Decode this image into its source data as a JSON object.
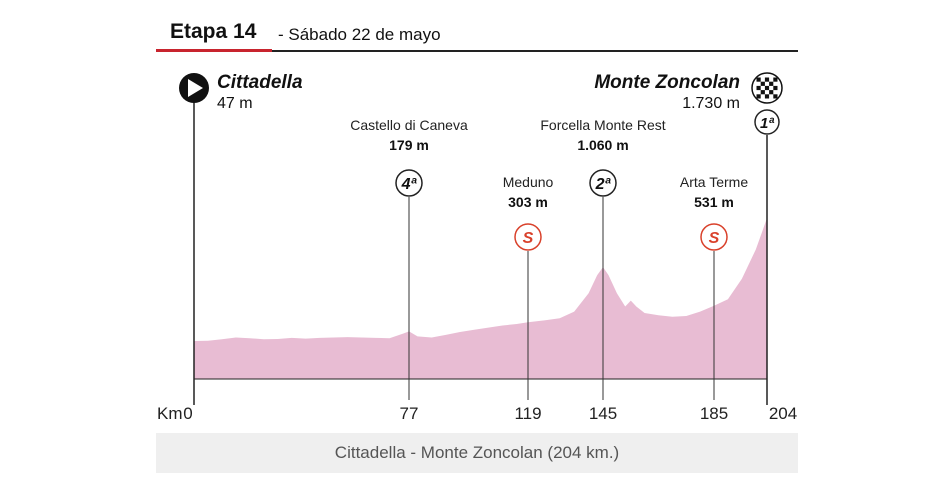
{
  "header": {
    "stage_title": "Etapa 14",
    "stage_date": "- Sábado 22 de mayo"
  },
  "start": {
    "name": "Cittadella",
    "altitude": "47 m",
    "km": 0
  },
  "finish": {
    "name": "Monte Zoncolan",
    "altitude": "1.730 m",
    "km": 204,
    "category": "1ª"
  },
  "waypoints": [
    {
      "name": "Castello di Caneva",
      "altitude": "179 m",
      "km": 77,
      "type": "climb",
      "category": "4ª"
    },
    {
      "name": "Meduno",
      "altitude": "303 m",
      "km": 119,
      "type": "sprint",
      "symbol": "S"
    },
    {
      "name": "Forcella Monte Rest",
      "altitude": "1.060 m",
      "km": 145,
      "type": "climb",
      "category": "2ª"
    },
    {
      "name": "Arta Terme",
      "altitude": "531 m",
      "km": 185,
      "type": "sprint",
      "symbol": "S"
    }
  ],
  "axis": {
    "km_prefix": "Km",
    "ticks": [
      "0",
      "77",
      "119",
      "145",
      "185",
      "204"
    ]
  },
  "profile_color": "#e8bcd3",
  "sprint_color": "#d9412b",
  "profile_points": [
    [
      0,
      47
    ],
    [
      5,
      50
    ],
    [
      10,
      70
    ],
    [
      15,
      95
    ],
    [
      20,
      85
    ],
    [
      25,
      70
    ],
    [
      30,
      75
    ],
    [
      35,
      90
    ],
    [
      40,
      80
    ],
    [
      45,
      90
    ],
    [
      50,
      95
    ],
    [
      55,
      100
    ],
    [
      60,
      95
    ],
    [
      65,
      90
    ],
    [
      70,
      85
    ],
    [
      75,
      150
    ],
    [
      77,
      179
    ],
    [
      80,
      110
    ],
    [
      85,
      95
    ],
    [
      90,
      130
    ],
    [
      95,
      170
    ],
    [
      100,
      200
    ],
    [
      105,
      230
    ],
    [
      110,
      260
    ],
    [
      115,
      280
    ],
    [
      119,
      303
    ],
    [
      125,
      330
    ],
    [
      130,
      360
    ],
    [
      135,
      450
    ],
    [
      140,
      700
    ],
    [
      143,
      950
    ],
    [
      145,
      1060
    ],
    [
      147,
      950
    ],
    [
      150,
      700
    ],
    [
      153,
      520
    ],
    [
      155,
      600
    ],
    [
      157,
      520
    ],
    [
      160,
      430
    ],
    [
      165,
      400
    ],
    [
      170,
      380
    ],
    [
      175,
      390
    ],
    [
      180,
      450
    ],
    [
      185,
      531
    ],
    [
      190,
      620
    ],
    [
      195,
      900
    ],
    [
      200,
      1300
    ],
    [
      204,
      1730
    ]
  ],
  "caption": "Cittadella - Monte Zoncolan (204 km.)"
}
